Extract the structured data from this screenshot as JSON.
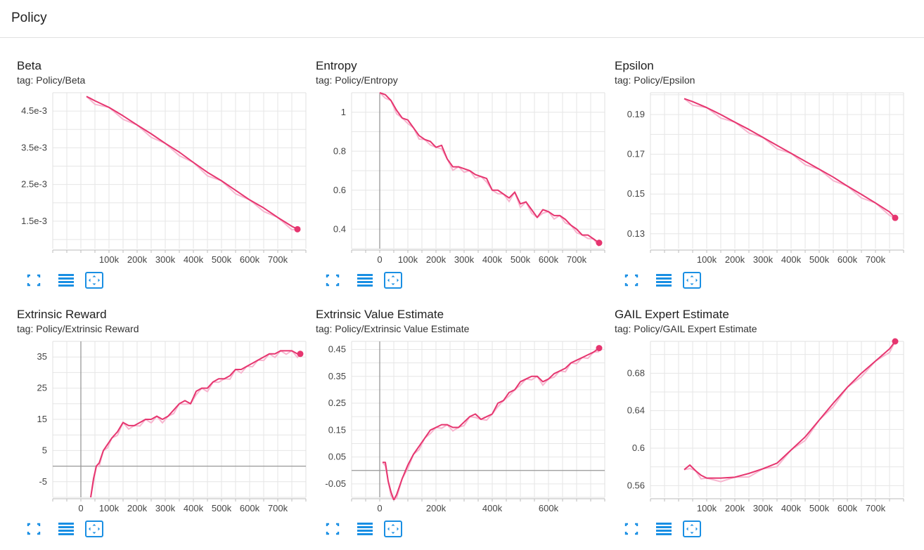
{
  "page": {
    "title": "Policy"
  },
  "icons": {
    "fit": "fit-domain-icon",
    "log": "toggle-log-scale-icon",
    "expand": "expand-chart-icon"
  },
  "colors": {
    "line": "#e6356f",
    "raw": "#f7b6cf",
    "grid": "#dddddd",
    "axis": "#9e9e9e"
  },
  "charts": [
    {
      "title": "Beta",
      "tag": "tag: Policy/Beta"
    },
    {
      "title": "Entropy",
      "tag": "tag: Policy/Entropy"
    },
    {
      "title": "Epsilon",
      "tag": "tag: Policy/Epsilon"
    },
    {
      "title": "Extrinsic Reward",
      "tag": "tag: Policy/Extrinsic Reward"
    },
    {
      "title": "Extrinsic Value Estimate",
      "tag": "tag: Policy/Extrinsic Value Estimate"
    },
    {
      "title": "GAIL Expert Estimate",
      "tag": "tag: Policy/GAIL Expert Estimate"
    }
  ],
  "chart_data": [
    {
      "type": "line",
      "title": "Beta",
      "xlim": [
        -100000,
        800000
      ],
      "ylim": [
        0.00075,
        0.005
      ],
      "xticks": [
        100000,
        200000,
        300000,
        400000,
        500000,
        600000,
        700000
      ],
      "xtick_labels": [
        "100k",
        "200k",
        "300k",
        "400k",
        "500k",
        "600k",
        "700k"
      ],
      "yticks": [
        0.0015,
        0.0025,
        0.0035,
        0.0045
      ],
      "ytick_labels": [
        "1.5e-3",
        "2.5e-3",
        "3.5e-3",
        "4.5e-3"
      ],
      "x": [
        20000,
        50000,
        100000,
        150000,
        200000,
        250000,
        300000,
        350000,
        400000,
        450000,
        500000,
        550000,
        600000,
        650000,
        700000,
        750000,
        770000
      ],
      "y": [
        0.0049,
        0.00478,
        0.0046,
        0.00437,
        0.00412,
        0.00388,
        0.00362,
        0.00338,
        0.0031,
        0.00283,
        0.0026,
        0.00234,
        0.00208,
        0.00186,
        0.0016,
        0.00136,
        0.00128
      ],
      "zero_x": false,
      "zero_y": false
    },
    {
      "type": "line",
      "title": "Entropy",
      "xlim": [
        -100000,
        800000
      ],
      "ylim": [
        0.3,
        1.1
      ],
      "xticks": [
        0,
        100000,
        200000,
        300000,
        400000,
        500000,
        600000,
        700000
      ],
      "xtick_labels": [
        "0",
        "100k",
        "200k",
        "300k",
        "400k",
        "500k",
        "600k",
        "700k"
      ],
      "yticks": [
        0.4,
        0.6,
        0.8,
        1.0
      ],
      "ytick_labels": [
        "0.4",
        "0.6",
        "0.8",
        "1"
      ],
      "x": [
        0,
        20000,
        40000,
        60000,
        80000,
        100000,
        120000,
        140000,
        160000,
        180000,
        200000,
        220000,
        240000,
        260000,
        280000,
        300000,
        320000,
        340000,
        360000,
        380000,
        400000,
        420000,
        440000,
        460000,
        480000,
        500000,
        520000,
        540000,
        560000,
        580000,
        600000,
        620000,
        640000,
        660000,
        680000,
        700000,
        720000,
        740000,
        760000,
        780000
      ],
      "y": [
        1.1,
        1.09,
        1.06,
        1.01,
        0.97,
        0.96,
        0.92,
        0.88,
        0.86,
        0.85,
        0.82,
        0.83,
        0.76,
        0.72,
        0.72,
        0.71,
        0.7,
        0.68,
        0.67,
        0.66,
        0.6,
        0.6,
        0.58,
        0.56,
        0.59,
        0.53,
        0.54,
        0.5,
        0.46,
        0.5,
        0.49,
        0.47,
        0.47,
        0.45,
        0.42,
        0.4,
        0.37,
        0.37,
        0.35,
        0.33
      ],
      "zero_x": true,
      "zero_y": false
    },
    {
      "type": "line",
      "title": "Epsilon",
      "xlim": [
        -100000,
        800000
      ],
      "ylim": [
        0.1225,
        0.201
      ],
      "xticks": [
        100000,
        200000,
        300000,
        400000,
        500000,
        600000,
        700000
      ],
      "xtick_labels": [
        "100k",
        "200k",
        "300k",
        "400k",
        "500k",
        "600k",
        "700k"
      ],
      "yticks": [
        0.13,
        0.15,
        0.17,
        0.19
      ],
      "ytick_labels": [
        "0.13",
        "0.15",
        "0.17",
        "0.19"
      ],
      "x": [
        20000,
        50000,
        100000,
        150000,
        200000,
        250000,
        300000,
        350000,
        400000,
        450000,
        500000,
        550000,
        600000,
        650000,
        700000,
        750000,
        770000
      ],
      "y": [
        0.198,
        0.1965,
        0.1935,
        0.19,
        0.1862,
        0.1825,
        0.1785,
        0.1745,
        0.1705,
        0.1665,
        0.1625,
        0.1585,
        0.154,
        0.1498,
        0.1455,
        0.141,
        0.138
      ],
      "zero_x": false,
      "zero_y": false
    },
    {
      "type": "line",
      "title": "Extrinsic Reward",
      "xlim": [
        -100000,
        800000
      ],
      "ylim": [
        -10,
        40
      ],
      "xticks": [
        0,
        100000,
        200000,
        300000,
        400000,
        500000,
        600000,
        700000
      ],
      "xtick_labels": [
        "0",
        "100k",
        "200k",
        "300k",
        "400k",
        "500k",
        "600k",
        "700k"
      ],
      "yticks": [
        -5,
        5,
        15,
        25,
        35
      ],
      "ytick_labels": [
        "-5",
        "5",
        "15",
        "25",
        "35"
      ],
      "x": [
        35000,
        45000,
        55000,
        65000,
        80000,
        95000,
        110000,
        130000,
        150000,
        170000,
        190000,
        210000,
        230000,
        250000,
        270000,
        290000,
        310000,
        330000,
        350000,
        370000,
        390000,
        410000,
        430000,
        450000,
        470000,
        490000,
        510000,
        530000,
        550000,
        570000,
        590000,
        610000,
        630000,
        650000,
        670000,
        690000,
        710000,
        730000,
        750000,
        770000,
        780000
      ],
      "y": [
        -10,
        -4,
        0,
        1,
        5,
        7,
        9,
        11,
        14,
        13,
        13,
        14,
        15,
        15,
        16,
        15,
        16,
        18,
        20,
        21,
        20,
        24,
        25,
        25,
        27,
        28,
        28,
        29,
        31,
        31,
        32,
        33,
        34,
        35,
        36,
        36,
        37,
        37,
        37,
        36,
        36
      ],
      "zero_x": true,
      "zero_y": true
    },
    {
      "type": "line",
      "title": "Extrinsic Value Estimate",
      "xlim": [
        -100000,
        800000
      ],
      "ylim": [
        -0.1,
        0.48
      ],
      "xticks": [
        200000,
        400000,
        600000
      ],
      "xtick_labels": [
        "200k",
        "400k",
        "600k"
      ],
      "yticks": [
        -0.05,
        0.05,
        0.15,
        0.25,
        0.35,
        0.45
      ],
      "ytick_labels": [
        "-0.05",
        "0.05",
        "0.15",
        "0.25",
        "0.35",
        "0.45"
      ],
      "extra_xtick_labels": [
        "0"
      ],
      "x": [
        10000,
        20000,
        30000,
        40000,
        50000,
        60000,
        80000,
        100000,
        120000,
        140000,
        160000,
        180000,
        200000,
        220000,
        240000,
        260000,
        280000,
        300000,
        320000,
        340000,
        360000,
        380000,
        400000,
        420000,
        440000,
        460000,
        480000,
        500000,
        520000,
        540000,
        560000,
        580000,
        600000,
        620000,
        640000,
        660000,
        680000,
        700000,
        720000,
        740000,
        760000,
        780000
      ],
      "y": [
        0.03,
        0.03,
        -0.04,
        -0.08,
        -0.11,
        -0.09,
        -0.03,
        0.02,
        0.06,
        0.09,
        0.12,
        0.15,
        0.16,
        0.17,
        0.17,
        0.16,
        0.16,
        0.18,
        0.2,
        0.21,
        0.19,
        0.2,
        0.21,
        0.25,
        0.26,
        0.29,
        0.3,
        0.33,
        0.34,
        0.35,
        0.35,
        0.33,
        0.34,
        0.36,
        0.37,
        0.38,
        0.4,
        0.41,
        0.42,
        0.43,
        0.44,
        0.455
      ],
      "zero_x": true,
      "zero_y": true
    },
    {
      "type": "line",
      "title": "GAIL Expert Estimate",
      "xlim": [
        -100000,
        800000
      ],
      "ylim": [
        0.5475,
        0.714
      ],
      "xticks": [
        100000,
        200000,
        300000,
        400000,
        500000,
        600000,
        700000
      ],
      "xtick_labels": [
        "100k",
        "200k",
        "300k",
        "400k",
        "500k",
        "600k",
        "700k"
      ],
      "yticks": [
        0.56,
        0.6,
        0.64,
        0.68
      ],
      "ytick_labels": [
        "0.56",
        "0.6",
        "0.64",
        "0.68"
      ],
      "x": [
        20000,
        40000,
        60000,
        80000,
        100000,
        150000,
        200000,
        250000,
        300000,
        350000,
        400000,
        450000,
        500000,
        550000,
        600000,
        650000,
        700000,
        750000,
        770000
      ],
      "y": [
        0.577,
        0.582,
        0.576,
        0.571,
        0.568,
        0.568,
        0.569,
        0.573,
        0.578,
        0.584,
        0.598,
        0.612,
        0.63,
        0.648,
        0.665,
        0.68,
        0.693,
        0.706,
        0.714
      ],
      "zero_x": false,
      "zero_y": false
    }
  ]
}
